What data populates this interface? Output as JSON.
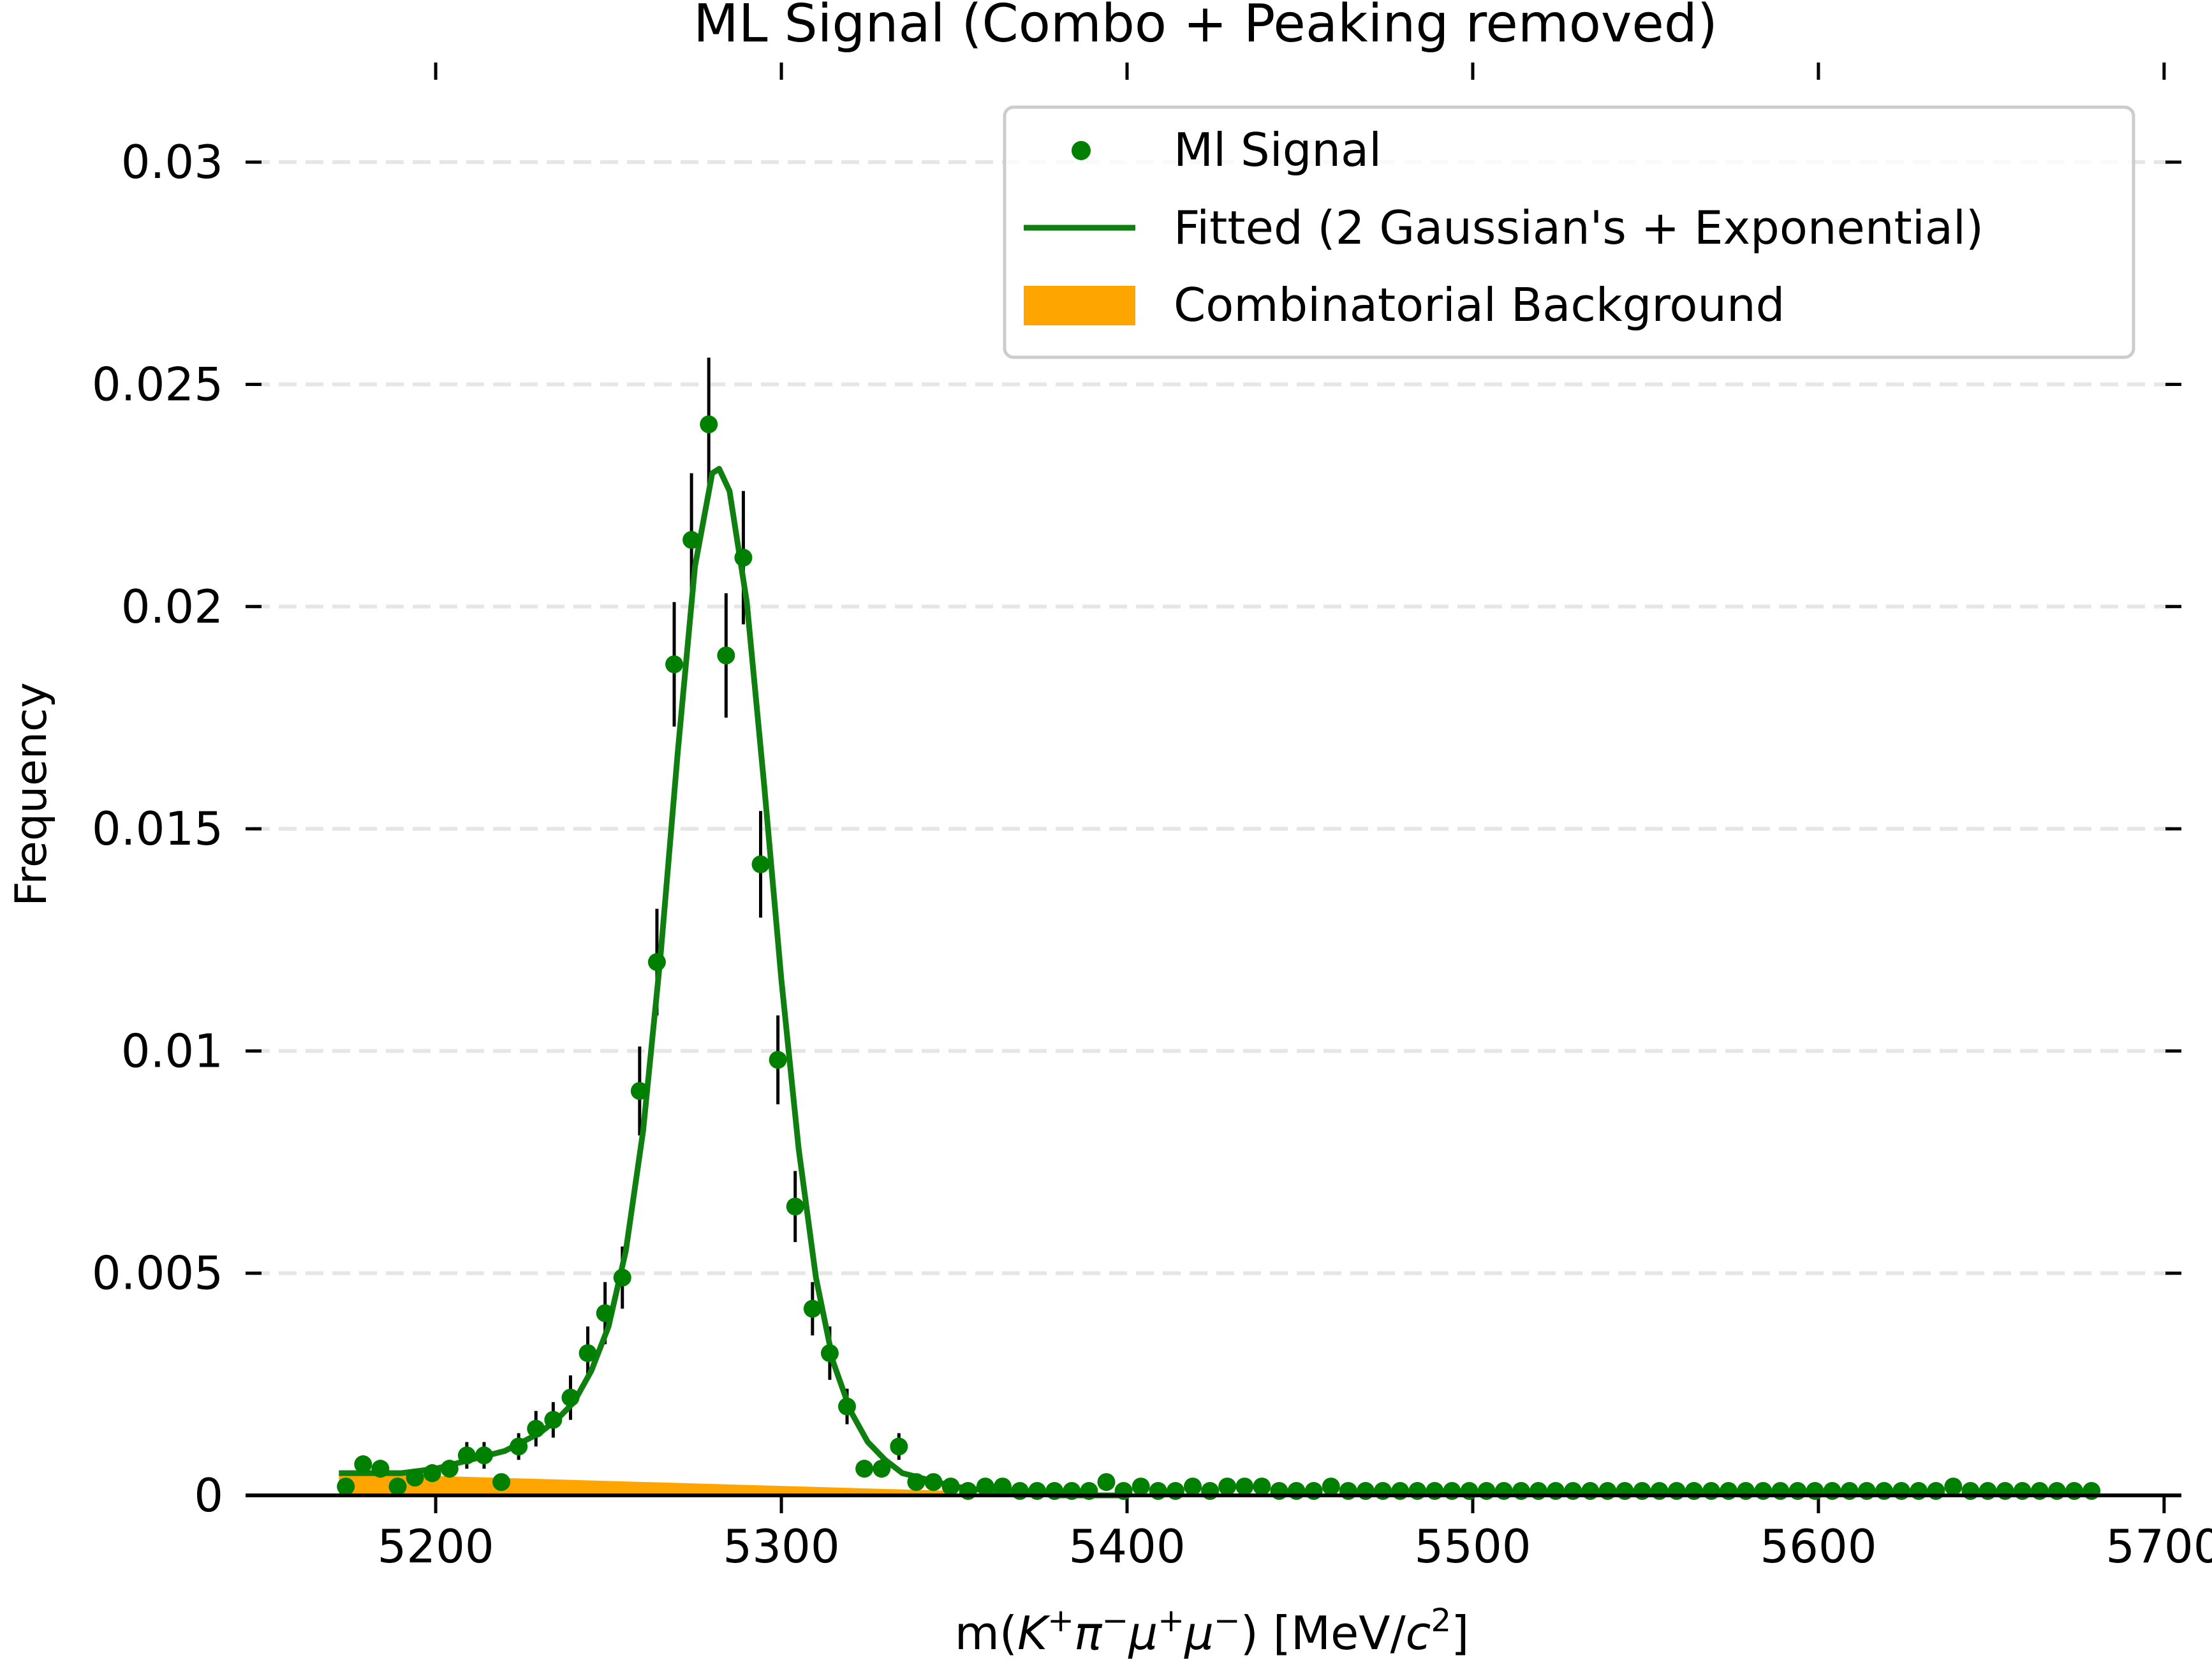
{
  "chart_data": {
    "type": "scatter",
    "title": "ML Signal (Combo + Peaking removed)",
    "xlabel": "m(K⁺π⁻μ⁺μ⁻) [MeV/c²]",
    "xlabel_parts": {
      "prefix": "m(",
      "K": "K",
      "pi": "π",
      "mu1": "μ",
      "mu2": "μ",
      "plus": "+",
      "minus": "−",
      "unit_open": ") [MeV/",
      "c": "c",
      "two": "2",
      "unit_close": "]"
    },
    "ylabel": "Frequency",
    "xlim": [
      5145,
      5705
    ],
    "ylim": [
      0,
      0.0325
    ],
    "x_ticks": [
      5200,
      5300,
      5400,
      5500,
      5600,
      5700
    ],
    "y_ticks": [
      0,
      0.005,
      0.01,
      0.015,
      0.02,
      0.025,
      0.03
    ],
    "y_tick_labels": [
      "0",
      "0.005",
      "0.01",
      "0.015",
      "0.02",
      "0.025",
      "0.03"
    ],
    "grid": "horizontal dashed",
    "legend_position": "top-right",
    "colors": {
      "signal": "#008000",
      "fit": "#0f7f0f",
      "background": "#ffa500",
      "errorbar": "#000000"
    },
    "legend": [
      {
        "label": "Ml Signal",
        "kind": "marker",
        "color": "#008000"
      },
      {
        "label": "Fitted (2 Gaussian's + Exponential)",
        "kind": "line",
        "color": "#0f7f0f"
      },
      {
        "label": "Combinatorial Background",
        "kind": "patch",
        "color": "#ffa500"
      }
    ],
    "series": [
      {
        "name": "Ml Signal",
        "kind": "errorbar",
        "x": [
          5174,
          5179,
          5184,
          5189,
          5194,
          5199,
          5204,
          5209,
          5214,
          5219,
          5224,
          5229,
          5234,
          5239,
          5244,
          5249,
          5254,
          5259,
          5264,
          5269,
          5274,
          5279,
          5284,
          5289,
          5294,
          5299,
          5304,
          5309,
          5314,
          5319,
          5324,
          5329,
          5334,
          5339,
          5344,
          5349,
          5354,
          5359,
          5364,
          5369,
          5374,
          5379,
          5384,
          5389,
          5394,
          5399,
          5404,
          5409,
          5414,
          5419,
          5424,
          5429,
          5434,
          5439,
          5444,
          5449,
          5454,
          5459,
          5464,
          5469,
          5474,
          5479,
          5484,
          5489,
          5494,
          5499,
          5504,
          5509,
          5514,
          5519,
          5524,
          5529,
          5534,
          5539,
          5544,
          5549,
          5554,
          5559,
          5564,
          5569,
          5574,
          5579,
          5584,
          5589,
          5594,
          5599,
          5604,
          5609,
          5614,
          5619,
          5624,
          5629,
          5634,
          5639,
          5644,
          5649,
          5654,
          5659,
          5664,
          5669,
          5674,
          5679
        ],
        "y": [
          0.0002,
          0.0007,
          0.0006,
          0.0002,
          0.0004,
          0.0005,
          0.0006,
          0.0009,
          0.0009,
          0.0003,
          0.0011,
          0.0015,
          0.0017,
          0.0022,
          0.0032,
          0.0041,
          0.0049,
          0.0091,
          0.012,
          0.0187,
          0.0215,
          0.0241,
          0.0189,
          0.0211,
          0.0142,
          0.0098,
          0.0065,
          0.0042,
          0.0032,
          0.002,
          0.0006,
          0.0006,
          0.0011,
          0.0003,
          0.0003,
          0.0002,
          0.0001,
          0.0002,
          0.0002,
          0.0001,
          0.0001,
          0.0001,
          0.0001,
          0.0001,
          0.0003,
          0.0001,
          0.0002,
          0.0001,
          0.0001,
          0.0002,
          0.0001,
          0.0002,
          0.0002,
          0.0002,
          0.0001,
          0.0001,
          0.0001,
          0.0002,
          0.0001,
          0.0001,
          0.0001,
          0.0001,
          0.0001,
          0.0001,
          0.0001,
          0.0001,
          0.0001,
          0.0001,
          0.0001,
          0.0001,
          0.0001,
          0.0001,
          0.0001,
          0.0001,
          0.0001,
          0.0001,
          0.0001,
          0.0001,
          0.0001,
          0.0001,
          0.0001,
          0.0001,
          0.0001,
          0.0001,
          0.0001,
          0.0001,
          0.0001,
          0.0001,
          0.0001,
          0.0001,
          0.0001,
          0.0001,
          0.0001,
          0.0002,
          0.0001,
          0.0001,
          0.0001,
          0.0001,
          0.0001,
          0.0001,
          0.0001,
          0.0001
        ],
        "yerr": [
          0.0001,
          0.0002,
          0.0002,
          0.0001,
          0.0001,
          0.0002,
          0.0002,
          0.0003,
          0.0003,
          0.0001,
          0.0003,
          0.0004,
          0.0004,
          0.0005,
          0.0006,
          0.0007,
          0.0007,
          0.001,
          0.0012,
          0.0014,
          0.0015,
          0.0015,
          0.0014,
          0.0015,
          0.0012,
          0.001,
          0.0008,
          0.0006,
          0.0006,
          0.0004,
          0.0002,
          0.0002,
          0.0003,
          0.0001,
          0.0001,
          0.0001,
          0.0001,
          0.0001,
          0.0001,
          0.0001,
          0.0001,
          0.0001,
          0.0001,
          0.0001,
          0.0001,
          0.0001,
          0.0001,
          0.0001,
          0.0001,
          0.0001,
          0.0001,
          0.0001,
          0.0001,
          0.0001,
          0.0001,
          0.0001,
          0.0001,
          0.0001,
          0.0001,
          0.0001,
          0.0001,
          0.0001,
          0.0001,
          0.0001,
          0.0001,
          0.0001,
          0.0001,
          0.0001,
          0.0001,
          0.0001,
          0.0001,
          0.0001,
          0.0001,
          0.0001,
          0.0001,
          0.0001,
          0.0001,
          0.0001,
          0.0001,
          0.0001,
          0.0001,
          0.0001,
          0.0001,
          0.0001,
          0.0001,
          0.0001,
          0.0001,
          0.0001,
          0.0001,
          0.0001,
          0.0001,
          0.0001,
          0.0001,
          0.0001,
          0.0001,
          0.0001,
          0.0001,
          0.0001,
          0.0001,
          0.0001,
          0.0001,
          0.0001
        ]
      },
      {
        "name": "Fitted (2 Gaussian's + Exponential)",
        "kind": "line",
        "x": [
          5172,
          5180,
          5190,
          5200,
          5210,
          5220,
          5230,
          5235,
          5240,
          5245,
          5250,
          5255,
          5260,
          5265,
          5270,
          5275,
          5280,
          5282,
          5285,
          5290,
          5295,
          5300,
          5305,
          5310,
          5315,
          5320,
          5325,
          5330,
          5335,
          5340,
          5345,
          5350,
          5360,
          5370,
          5380,
          5390,
          5400
        ],
        "y": [
          0.0005,
          0.0005,
          0.0005,
          0.0006,
          0.0008,
          0.001,
          0.0014,
          0.0017,
          0.0021,
          0.0028,
          0.0038,
          0.0055,
          0.0082,
          0.0121,
          0.0167,
          0.0209,
          0.023,
          0.0231,
          0.0226,
          0.0201,
          0.016,
          0.0116,
          0.0078,
          0.0049,
          0.003,
          0.0019,
          0.0012,
          0.0008,
          0.0005,
          0.0004,
          0.0003,
          0.0002,
          0.0001,
          0.0001,
          0.0,
          0.0,
          0.0
        ]
      },
      {
        "name": "Combinatorial Background",
        "kind": "area",
        "x": [
          5172,
          5350
        ],
        "y": [
          0.0005,
          0.0001
        ]
      }
    ]
  }
}
